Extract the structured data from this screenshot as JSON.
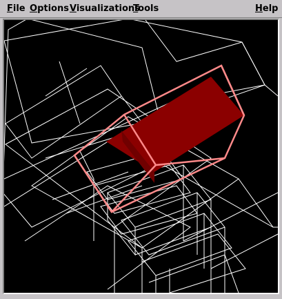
{
  "menubar": {
    "items": [
      {
        "first": "F",
        "rest": "ile"
      },
      {
        "first": "O",
        "rest": "ptions"
      },
      {
        "first": "V",
        "rest": "isualizations"
      },
      {
        "first": "T",
        "rest": "ools"
      }
    ],
    "help": {
      "first": "H",
      "rest": "elp"
    }
  },
  "scene": {
    "background": "#000000",
    "wire_color": "#ffffff",
    "highlight_edge_color": "#ff8a8a",
    "highlight_fill_color": "#8b0000"
  }
}
